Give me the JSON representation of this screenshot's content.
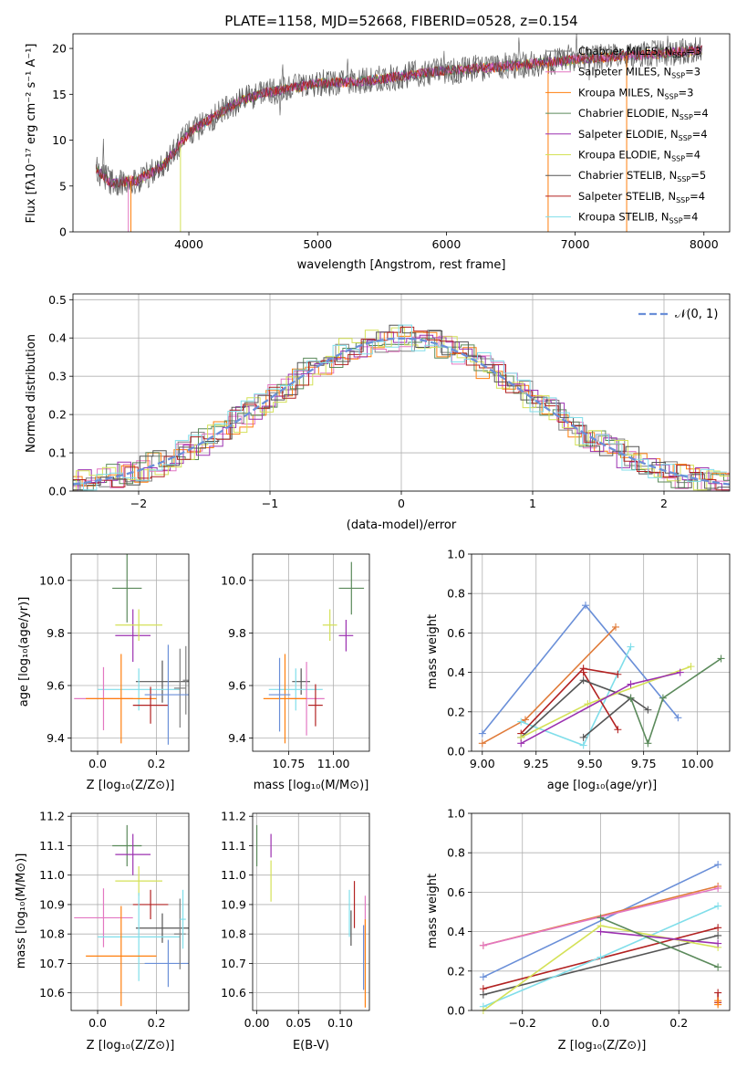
{
  "figure": {
    "title": "PLATE=1158, MJD=52668, FIBERID=0528, z=0.154"
  },
  "colors": {
    "Chabrier MILES": "#7f7f7f",
    "Salpeter MILES": "#e377c2",
    "Kroupa MILES": "#ff7f0e",
    "Chabrier ELODIE": "#5b8a5b",
    "Salpeter ELODIE": "#9b30b0",
    "Kroupa ELODIE": "#d4e157",
    "Chabrier STELIB": "#555555",
    "Salpeter STELIB": "#b22222",
    "Kroupa STELIB": "#80deea",
    "gaussian": "#6a8fd8",
    "grid": "#b0b0b0",
    "extra_blue": "#6a8fd8",
    "extra_orange": "#e07b39"
  },
  "chart_data": [
    {
      "id": "spectrum",
      "type": "line",
      "title": "PLATE=1158, MJD=52668, FIBERID=0528, z=0.154",
      "xlabel": "wavelength [Angstrom, rest frame]",
      "ylabel": "Flux [fλ10⁻¹⁷ erg cm⁻² s⁻¹ A⁻¹]",
      "xlim": [
        3100,
        8200
      ],
      "ylim": [
        0,
        21.6
      ],
      "xticks": [
        4000,
        5000,
        6000,
        7000,
        8000
      ],
      "yticks": [
        0,
        5,
        10,
        15,
        20
      ],
      "grid": false,
      "legend_position": "top-right",
      "series": [
        {
          "name": "Chabrier MILES, N_SSP=3"
        },
        {
          "name": "Salpeter MILES, N_SSP=3"
        },
        {
          "name": "Kroupa MILES, N_SSP=3"
        },
        {
          "name": "Chabrier ELODIE, N_SSP=4"
        },
        {
          "name": "Salpeter ELODIE, N_SSP=4"
        },
        {
          "name": "Kroupa ELODIE, N_SSP=4"
        },
        {
          "name": "Chabrier STELIB, N_SSP=5"
        },
        {
          "name": "Salpeter STELIB, N_SSP=4"
        },
        {
          "name": "Kroupa STELIB, N_SSP=4"
        }
      ],
      "continuum": {
        "x": [
          3280,
          3400,
          3600,
          3800,
          4000,
          4200,
          4400,
          4600,
          4800,
          5000,
          5200,
          5400,
          5600,
          5800,
          6000,
          6200,
          6400,
          6600,
          6800,
          7000,
          7200,
          7400,
          7600,
          7800,
          8000
        ],
        "y": [
          6.8,
          5.3,
          5.6,
          7.2,
          10.8,
          12.6,
          14.3,
          15.2,
          15.7,
          16.2,
          16.3,
          16.5,
          16.9,
          17.3,
          17.6,
          17.8,
          18.0,
          18.2,
          18.5,
          18.8,
          19.0,
          19.2,
          19.4,
          19.6,
          19.8
        ]
      }
    },
    {
      "id": "residuals",
      "type": "step-histogram",
      "xlabel": "(data-model)/error",
      "ylabel": "Normed distribution",
      "xlim": [
        -2.5,
        2.5
      ],
      "ylim": [
        0,
        0.515
      ],
      "xticks": [
        -2,
        -1,
        0,
        1,
        2
      ],
      "yticks": [
        0.0,
        0.1,
        0.2,
        0.3,
        0.4,
        0.5
      ],
      "grid": true,
      "legend_position": "top-right",
      "gaussian_label": "𝒩(0, 1)",
      "bin_width": 0.1,
      "bin_start": -2.5
    },
    {
      "id": "age-vs-Z",
      "type": "scatter",
      "xlabel": "Z [log₁₀(Z/Z⊙)]",
      "ylabel": "age  [log₁₀(age/yr)]",
      "xlim": [
        -0.09,
        0.31
      ],
      "ylim": [
        9.35,
        10.1
      ],
      "xticks": [
        0.0,
        0.2
      ],
      "yticks": [
        9.4,
        9.6,
        9.8,
        10.0
      ],
      "grid": true,
      "points": [
        {
          "series": "Chabrier ELODIE",
          "x": 0.1,
          "xerr": 0.05,
          "y": 9.97,
          "yerr": 0.13
        },
        {
          "series": "Salpeter ELODIE",
          "x": 0.12,
          "xerr": 0.06,
          "y": 9.79,
          "yerr": 0.1
        },
        {
          "series": "Kroupa ELODIE",
          "x": 0.14,
          "xerr": 0.08,
          "y": 9.83,
          "yerr": 0.06
        },
        {
          "series": "Chabrier STELIB",
          "x": 0.22,
          "xerr": 0.09,
          "y": 9.615,
          "yerr": 0.08
        },
        {
          "series": "Kroupa STELIB",
          "x": 0.14,
          "xerr": 0.14,
          "y": 9.585,
          "yerr": 0.08
        },
        {
          "series": "Salpeter MILES",
          "x": 0.02,
          "xerr": 0.1,
          "y": 9.55,
          "yerr": 0.12
        },
        {
          "series": "Kroupa MILES",
          "x": 0.08,
          "xerr": 0.12,
          "y": 9.55,
          "yerr": 0.17
        },
        {
          "series": "Salpeter STELIB",
          "x": 0.18,
          "xerr": 0.06,
          "y": 9.525,
          "yerr": 0.07
        },
        {
          "series": "Chabrier MILES",
          "x": 0.28,
          "xerr": 0.02,
          "y": 9.59,
          "yerr": 0.15
        },
        {
          "series": "Chabrier MILES",
          "x": 0.3,
          "xerr": 0.01,
          "y": 9.62,
          "yerr": 0.13
        },
        {
          "series": "extra_blue",
          "x": 0.24,
          "xerr": 0.08,
          "y": 9.565,
          "yerr": 0.19
        }
      ]
    },
    {
      "id": "age-vs-mass",
      "type": "scatter",
      "xlabel": "mass [log₁₀(M/M⊙)]",
      "ylabel": "",
      "xlim": [
        10.55,
        11.2
      ],
      "ylim": [
        9.35,
        10.1
      ],
      "xticks": [
        10.75,
        11.0
      ],
      "yticks": [
        9.4,
        9.6,
        9.8,
        10.0
      ],
      "grid": true,
      "points": [
        {
          "series": "Chabrier ELODIE",
          "x": 11.1,
          "xerr": 0.07,
          "y": 9.97,
          "yerr": 0.1
        },
        {
          "series": "Salpeter ELODIE",
          "x": 11.07,
          "xerr": 0.04,
          "y": 9.79,
          "yerr": 0.06
        },
        {
          "series": "Kroupa ELODIE",
          "x": 10.98,
          "xerr": 0.04,
          "y": 9.83,
          "yerr": 0.06
        },
        {
          "series": "Chabrier STELIB",
          "x": 10.82,
          "xerr": 0.05,
          "y": 9.615,
          "yerr": 0.05
        },
        {
          "series": "Kroupa STELIB",
          "x": 10.79,
          "xerr": 0.15,
          "y": 9.585,
          "yerr": 0.08
        },
        {
          "series": "Salpeter MILES",
          "x": 10.85,
          "xerr": 0.1,
          "y": 9.55,
          "yerr": 0.14
        },
        {
          "series": "Kroupa MILES",
          "x": 10.73,
          "xerr": 0.12,
          "y": 9.55,
          "yerr": 0.17
        },
        {
          "series": "Salpeter STELIB",
          "x": 10.9,
          "xerr": 0.04,
          "y": 9.525,
          "yerr": 0.08
        },
        {
          "series": "extra_blue",
          "x": 10.7,
          "xerr": 0.06,
          "y": 9.565,
          "yerr": 0.14
        }
      ]
    },
    {
      "id": "weight-vs-age",
      "type": "line",
      "xlabel": "age  [log₁₀(age/yr)]",
      "ylabel": "mass weight",
      "xlim": [
        8.95,
        10.15
      ],
      "ylim": [
        0,
        1.0
      ],
      "xticks": [
        9.0,
        9.25,
        9.5,
        9.75,
        10.0
      ],
      "yticks": [
        0.0,
        0.2,
        0.4,
        0.6,
        0.8,
        1.0
      ],
      "grid": true,
      "series": [
        {
          "color": "extra_blue",
          "x": [
            9.0,
            9.48,
            9.91
          ],
          "y": [
            0.09,
            0.74,
            0.17
          ]
        },
        {
          "color": "extra_orange",
          "x": [
            9.0,
            9.2,
            9.62
          ],
          "y": [
            0.04,
            0.16,
            0.63
          ]
        },
        {
          "color": "Kroupa STELIB",
          "x": [
            9.18,
            9.47,
            9.69
          ],
          "y": [
            0.15,
            0.03,
            0.53
          ]
        },
        {
          "color": "Salpeter STELIB",
          "x": [
            9.18,
            9.47,
            9.63
          ],
          "y": [
            0.09,
            0.42,
            0.39
          ]
        },
        {
          "color": "Salpeter STELIB",
          "x": [
            9.47,
            9.63
          ],
          "y": [
            0.4,
            0.11
          ]
        },
        {
          "color": "Chabrier STELIB",
          "x": [
            9.18,
            9.47,
            9.69,
            9.77
          ],
          "y": [
            0.07,
            0.36,
            0.27,
            0.21
          ]
        },
        {
          "color": "Chabrier STELIB",
          "x": [
            9.47,
            9.69
          ],
          "y": [
            0.07,
            0.27
          ]
        },
        {
          "color": "Kroupa ELODIE",
          "x": [
            9.18,
            9.49,
            9.97
          ],
          "y": [
            0.07,
            0.24,
            0.43
          ]
        },
        {
          "color": "Salpeter ELODIE",
          "x": [
            9.18,
            9.69,
            9.92
          ],
          "y": [
            0.04,
            0.34,
            0.4
          ]
        },
        {
          "color": "Chabrier ELODIE",
          "x": [
            9.69,
            9.77,
            9.84,
            10.11
          ],
          "y": [
            0.27,
            0.04,
            0.27,
            0.47
          ]
        }
      ]
    },
    {
      "id": "mass-vs-Z",
      "type": "scatter",
      "xlabel": "Z [log₁₀(Z/Z⊙)]",
      "ylabel": "mass [log₁₀(M/M⊙)]",
      "xlim": [
        -0.09,
        0.31
      ],
      "ylim": [
        10.54,
        11.21
      ],
      "xticks": [
        0.0,
        0.2
      ],
      "yticks": [
        10.6,
        10.7,
        10.8,
        10.9,
        11.0,
        11.1,
        11.2
      ],
      "grid": true,
      "points": [
        {
          "series": "Chabrier ELODIE",
          "x": 0.1,
          "xerr": 0.05,
          "y": 11.1,
          "yerr": 0.07
        },
        {
          "series": "Salpeter ELODIE",
          "x": 0.12,
          "xerr": 0.06,
          "y": 11.07,
          "yerr": 0.07
        },
        {
          "series": "Kroupa ELODIE",
          "x": 0.14,
          "xerr": 0.08,
          "y": 10.98,
          "yerr": 0.05
        },
        {
          "series": "Salpeter STELIB",
          "x": 0.18,
          "xerr": 0.06,
          "y": 10.9,
          "yerr": 0.05
        },
        {
          "series": "Chabrier STELIB",
          "x": 0.22,
          "xerr": 0.09,
          "y": 10.82,
          "yerr": 0.05
        },
        {
          "series": "Salpeter MILES",
          "x": 0.02,
          "xerr": 0.1,
          "y": 10.855,
          "yerr": 0.1
        },
        {
          "series": "Kroupa STELIB",
          "x": 0.14,
          "xerr": 0.14,
          "y": 10.79,
          "yerr": 0.15
        },
        {
          "series": "Kroupa MILES",
          "x": 0.08,
          "xerr": 0.12,
          "y": 10.725,
          "yerr": 0.17
        },
        {
          "series": "extra_blue",
          "x": 0.24,
          "xerr": 0.08,
          "y": 10.7,
          "yerr": 0.08
        },
        {
          "series": "Chabrier MILES",
          "x": 0.28,
          "xerr": 0.02,
          "y": 10.8,
          "yerr": 0.12
        },
        {
          "series": "Kroupa STELIB",
          "x": 0.29,
          "xerr": 0.01,
          "y": 10.85,
          "yerr": 0.1
        }
      ]
    },
    {
      "id": "mass-vs-ebv",
      "type": "scatter",
      "xlabel": "E(B-V)",
      "ylabel": "",
      "xlim": [
        -0.005,
        0.135
      ],
      "ylim": [
        10.54,
        11.21
      ],
      "xticks": [
        0.0,
        0.05,
        0.1
      ],
      "yticks": [
        10.6,
        10.7,
        10.8,
        10.9,
        11.0,
        11.1,
        11.2
      ],
      "grid": true,
      "points": [
        {
          "series": "Chabrier ELODIE",
          "x": 0.0,
          "xerr": 0,
          "y": 11.1,
          "yerr": 0.07
        },
        {
          "series": "Salpeter ELODIE",
          "x": 0.017,
          "xerr": 0,
          "y": 11.1,
          "yerr": 0.04
        },
        {
          "series": "Kroupa ELODIE",
          "x": 0.017,
          "xerr": 0,
          "y": 10.98,
          "yerr": 0.07
        },
        {
          "series": "Salpeter STELIB",
          "x": 0.117,
          "xerr": 0,
          "y": 10.9,
          "yerr": 0.08
        },
        {
          "series": "Kroupa STELIB",
          "x": 0.111,
          "xerr": 0,
          "y": 10.87,
          "yerr": 0.08
        },
        {
          "series": "Chabrier STELIB",
          "x": 0.113,
          "xerr": 0,
          "y": 10.82,
          "yerr": 0.06
        },
        {
          "series": "Salpeter MILES",
          "x": 0.13,
          "xerr": 0,
          "y": 10.82,
          "yerr": 0.11
        },
        {
          "series": "extra_blue",
          "x": 0.128,
          "xerr": 0,
          "y": 10.72,
          "yerr": 0.11
        },
        {
          "series": "Kroupa MILES",
          "x": 0.13,
          "xerr": 0,
          "y": 10.7,
          "yerr": 0.15
        }
      ]
    },
    {
      "id": "weight-vs-Z",
      "type": "line",
      "xlabel": "Z [log₁₀(Z/Z⊙)]",
      "ylabel": "mass weight",
      "xlim": [
        -0.33,
        0.33
      ],
      "ylim": [
        0,
        1.0
      ],
      "xticks": [
        -0.2,
        0.0,
        0.2
      ],
      "yticks": [
        0.0,
        0.2,
        0.4,
        0.6,
        0.8,
        1.0
      ],
      "grid": true,
      "series": [
        {
          "color": "extra_blue",
          "x": [
            -0.3,
            0.3
          ],
          "y": [
            0.17,
            0.74
          ]
        },
        {
          "color": "extra_orange",
          "x": [
            -0.3,
            0.3
          ],
          "y": [
            0.33,
            0.63
          ]
        },
        {
          "color": "Salpeter MILES",
          "x": [
            -0.3,
            0.3
          ],
          "y": [
            0.33,
            0.62
          ]
        },
        {
          "color": "Salpeter STELIB",
          "x": [
            -0.3,
            0.3
          ],
          "y": [
            0.11,
            0.42
          ]
        },
        {
          "color": "Chabrier STELIB",
          "x": [
            -0.3,
            0.3
          ],
          "y": [
            0.08,
            0.38
          ]
        },
        {
          "color": "Kroupa STELIB",
          "x": [
            -0.3,
            0.0,
            0.3
          ],
          "y": [
            0.02,
            0.27,
            0.53
          ]
        },
        {
          "color": "Kroupa ELODIE",
          "x": [
            -0.3,
            0.0,
            0.3
          ],
          "y": [
            0.0,
            0.43,
            0.32
          ]
        },
        {
          "color": "Salpeter ELODIE",
          "x": [
            0.0,
            0.3
          ],
          "y": [
            0.4,
            0.34
          ]
        },
        {
          "color": "Chabrier ELODIE",
          "x": [
            0.0,
            0.3
          ],
          "y": [
            0.47,
            0.22
          ]
        },
        {
          "color": "Salpeter STELIB",
          "x": [
            0.3,
            0.3
          ],
          "y": [
            0.09,
            0.04
          ]
        },
        {
          "color": "Kroupa MILES",
          "x": [
            0.3,
            0.3
          ],
          "y": [
            0.03,
            0.05
          ]
        }
      ]
    }
  ]
}
